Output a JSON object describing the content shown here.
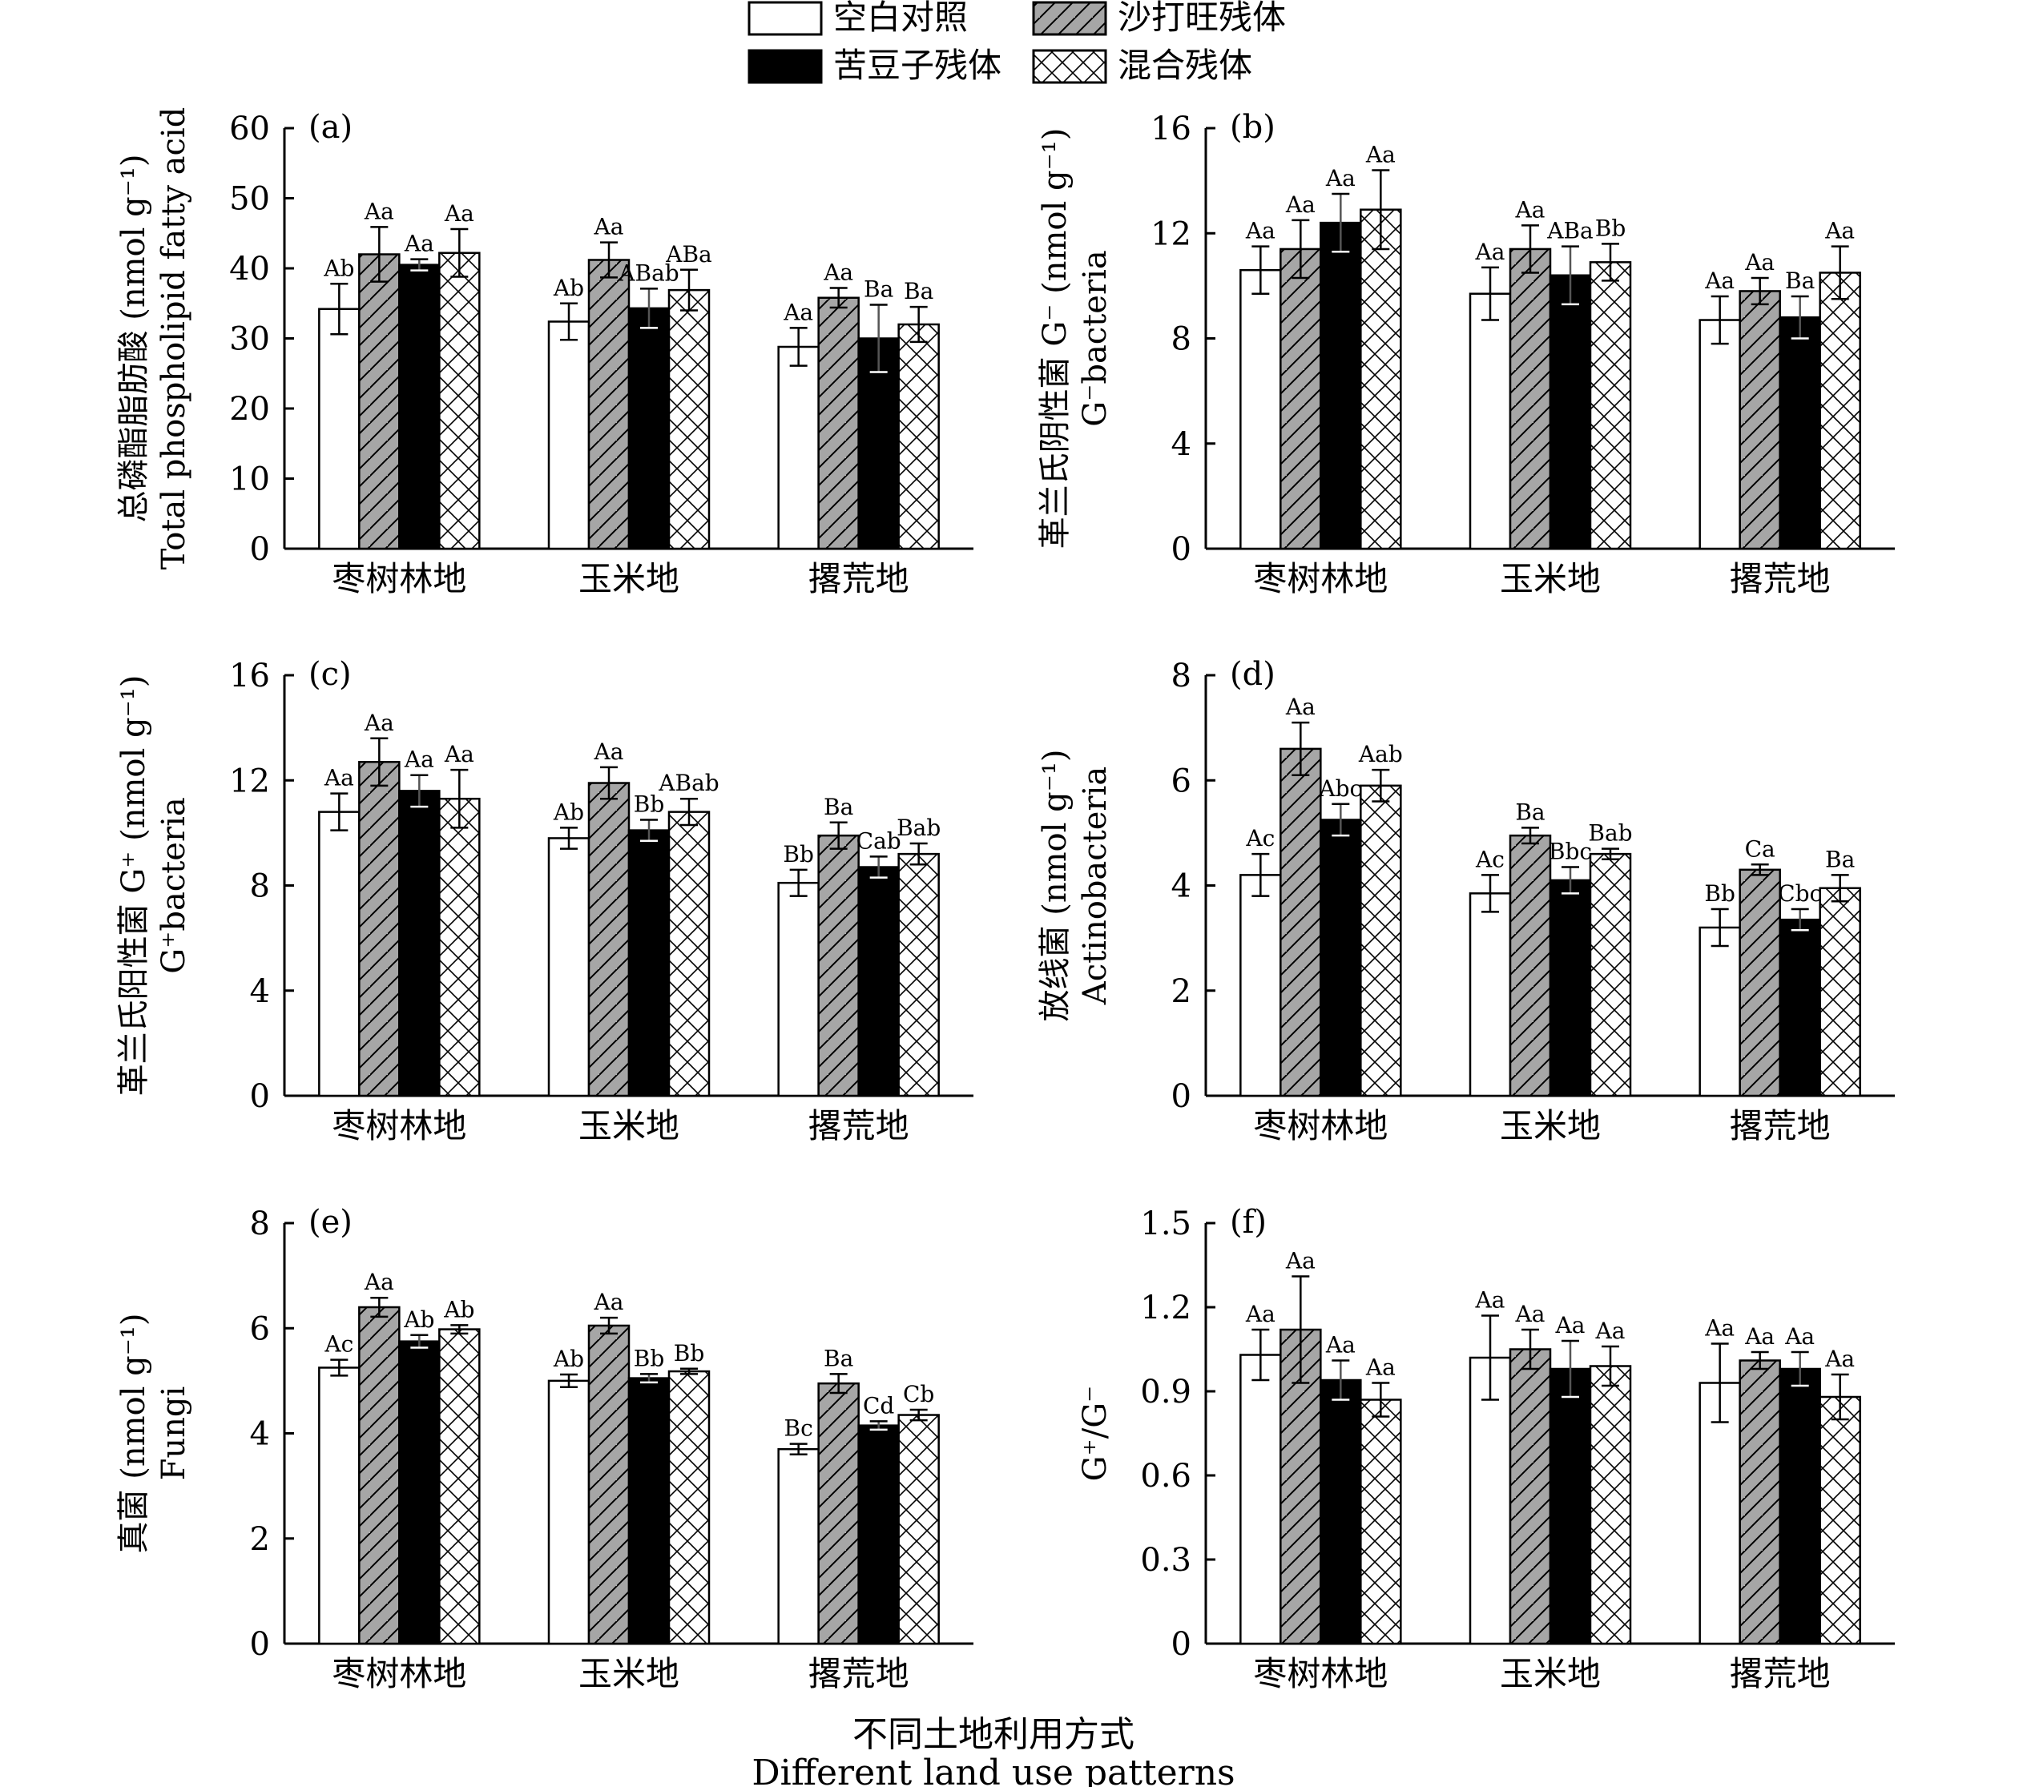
{
  "legend": [
    "空白对照",
    "沙打旺残体",
    "苦豆子残体",
    "混合残体"
  ],
  "fills": {
    "blank": "#ffffff",
    "shadawang": "#a6a6a6",
    "kudouzi": "#000000",
    "mixed": "#ffffff"
  },
  "x_title": {
    "zh": "不同土地利用方式",
    "en": "Different land use patterns"
  },
  "categories": [
    "枣树林地",
    "玉米地",
    "撂荒地"
  ],
  "chart_data": [
    {
      "type": "bar",
      "panel": "(a)",
      "ylabel_zh": "总磷酯脂肪酸 (nmol g⁻¹)",
      "ylabel_en": "Total phospholipid fatty acid",
      "ylim": [
        0,
        60
      ],
      "yticks": [
        "0",
        "10",
        "20",
        "30",
        "40",
        "50",
        "60"
      ],
      "categories": [
        "枣树林地",
        "玉米地",
        "撂荒地"
      ],
      "series": [
        {
          "name": "空白对照",
          "values": [
            34.2,
            32.4,
            28.8
          ],
          "err": [
            3.6,
            2.6,
            2.7
          ],
          "labels": [
            "Ab",
            "Ab",
            "Aa"
          ]
        },
        {
          "name": "沙打旺残体",
          "values": [
            42.0,
            41.2,
            35.8
          ],
          "err": [
            3.9,
            2.5,
            1.4
          ],
          "labels": [
            "Aa",
            "Aa",
            "Aa"
          ]
        },
        {
          "name": "苦豆子残体",
          "values": [
            40.5,
            34.3,
            30.0
          ],
          "err": [
            0.8,
            2.8,
            4.8
          ],
          "labels": [
            "Aa",
            "ABab",
            "Ba"
          ]
        },
        {
          "name": "混合残体",
          "values": [
            42.2,
            36.9,
            32.0
          ],
          "err": [
            3.4,
            2.9,
            2.5
          ],
          "labels": [
            "Aa",
            "ABa",
            "Ba"
          ]
        }
      ]
    },
    {
      "type": "bar",
      "panel": "(b)",
      "ylabel_zh": "革兰氏阴性菌 G⁻ (nmol g⁻¹)",
      "ylabel_en": "G⁻bacteria",
      "ylim": [
        0,
        16
      ],
      "yticks": [
        "0",
        "4",
        "8",
        "12",
        "16"
      ],
      "categories": [
        "枣树林地",
        "玉米地",
        "撂荒地"
      ],
      "series": [
        {
          "name": "空白对照",
          "values": [
            10.6,
            9.7,
            8.7
          ],
          "err": [
            0.9,
            1.0,
            0.9
          ],
          "labels": [
            "Aa",
            "Aa",
            "Aa"
          ]
        },
        {
          "name": "沙打旺残体",
          "values": [
            11.4,
            11.4,
            9.8
          ],
          "err": [
            1.1,
            0.9,
            0.5
          ],
          "labels": [
            "Aa",
            "Aa",
            "Aa"
          ]
        },
        {
          "name": "苦豆子残体",
          "values": [
            12.4,
            10.4,
            8.8
          ],
          "err": [
            1.1,
            1.1,
            0.8
          ],
          "labels": [
            "Aa",
            "ABa",
            "Ba"
          ]
        },
        {
          "name": "混合残体",
          "values": [
            12.9,
            10.9,
            10.5
          ],
          "err": [
            1.5,
            0.7,
            1.0
          ],
          "labels": [
            "Aa",
            "Bb",
            "Aa"
          ]
        }
      ]
    },
    {
      "type": "bar",
      "panel": "(c)",
      "ylabel_zh": "革兰氏阳性菌 G⁺ (nmol g⁻¹)",
      "ylabel_en": "G⁺bacteria",
      "ylim": [
        0,
        16
      ],
      "yticks": [
        "0",
        "4",
        "8",
        "12",
        "16"
      ],
      "categories": [
        "枣树林地",
        "玉米地",
        "撂荒地"
      ],
      "series": [
        {
          "name": "空白对照",
          "values": [
            10.8,
            9.8,
            8.1
          ],
          "err": [
            0.7,
            0.4,
            0.5
          ],
          "labels": [
            "Aa",
            "Ab",
            "Bb"
          ]
        },
        {
          "name": "沙打旺残体",
          "values": [
            12.7,
            11.9,
            9.9
          ],
          "err": [
            0.9,
            0.6,
            0.5
          ],
          "labels": [
            "Aa",
            "Aa",
            "Ba"
          ]
        },
        {
          "name": "苦豆子残体",
          "values": [
            11.6,
            10.1,
            8.7
          ],
          "err": [
            0.6,
            0.4,
            0.4
          ],
          "labels": [
            "Aa",
            "Bb",
            "Cab"
          ]
        },
        {
          "name": "混合残体",
          "values": [
            11.3,
            10.8,
            9.2
          ],
          "err": [
            1.1,
            0.5,
            0.4
          ],
          "labels": [
            "Aa",
            "ABab",
            "Bab"
          ]
        }
      ]
    },
    {
      "type": "bar",
      "panel": "(d)",
      "ylabel_zh": "放线菌 (nmol g⁻¹)",
      "ylabel_en": "Actinobacteria",
      "ylim": [
        0,
        8
      ],
      "yticks": [
        "0",
        "2",
        "4",
        "6",
        "8"
      ],
      "categories": [
        "枣树林地",
        "玉米地",
        "撂荒地"
      ],
      "series": [
        {
          "name": "空白对照",
          "values": [
            4.2,
            3.85,
            3.2
          ],
          "err": [
            0.4,
            0.35,
            0.35
          ],
          "labels": [
            "Ac",
            "Ac",
            "Bb"
          ]
        },
        {
          "name": "沙打旺残体",
          "values": [
            6.6,
            4.95,
            4.3
          ],
          "err": [
            0.5,
            0.15,
            0.1
          ],
          "labels": [
            "Aa",
            "Ba",
            "Ca"
          ]
        },
        {
          "name": "苦豆子残体",
          "values": [
            5.25,
            4.1,
            3.35
          ],
          "err": [
            0.3,
            0.25,
            0.2
          ],
          "labels": [
            "Abc",
            "Bbc",
            "Cbc"
          ]
        },
        {
          "name": "混合残体",
          "values": [
            5.9,
            4.6,
            3.95
          ],
          "err": [
            0.3,
            0.1,
            0.25
          ],
          "labels": [
            "Aab",
            "Bab",
            "Ba"
          ]
        }
      ]
    },
    {
      "type": "bar",
      "panel": "(e)",
      "ylabel_zh": "真菌 (nmol g⁻¹)",
      "ylabel_en": "Fungi",
      "ylim": [
        0,
        8
      ],
      "yticks": [
        "0",
        "2",
        "4",
        "6",
        "8"
      ],
      "categories": [
        "枣树林地",
        "玉米地",
        "撂荒地"
      ],
      "series": [
        {
          "name": "空白对照",
          "values": [
            5.25,
            5.0,
            3.7
          ],
          "err": [
            0.15,
            0.12,
            0.1
          ],
          "labels": [
            "Ac",
            "Ab",
            "Bc"
          ]
        },
        {
          "name": "沙打旺残体",
          "values": [
            6.4,
            6.05,
            4.95
          ],
          "err": [
            0.18,
            0.15,
            0.18
          ],
          "labels": [
            "Aa",
            "Aa",
            "Ba"
          ]
        },
        {
          "name": "苦豆子残体",
          "values": [
            5.75,
            5.05,
            4.15
          ],
          "err": [
            0.12,
            0.08,
            0.08
          ],
          "labels": [
            "Ab",
            "Bb",
            "Cd"
          ]
        },
        {
          "name": "混合残体",
          "values": [
            5.98,
            5.18,
            4.35
          ],
          "err": [
            0.08,
            0.05,
            0.1
          ],
          "labels": [
            "Ab",
            "Bb",
            "Cb"
          ]
        }
      ]
    },
    {
      "type": "bar",
      "panel": "(f)",
      "ylabel_zh": "G⁺/G⁻",
      "ylabel_en": "",
      "ylim": [
        0,
        1.5
      ],
      "yticks": [
        "0",
        "0.3",
        "0.6",
        "0.9",
        "1.2",
        "1.5"
      ],
      "categories": [
        "枣树林地",
        "玉米地",
        "撂荒地"
      ],
      "series": [
        {
          "name": "空白对照",
          "values": [
            1.03,
            1.02,
            0.93
          ],
          "err": [
            0.09,
            0.15,
            0.14
          ],
          "labels": [
            "Aa",
            "Aa",
            "Aa"
          ]
        },
        {
          "name": "沙打旺残体",
          "values": [
            1.12,
            1.05,
            1.01
          ],
          "err": [
            0.19,
            0.07,
            0.03
          ],
          "labels": [
            "Aa",
            "Aa",
            "Aa"
          ]
        },
        {
          "name": "苦豆子残体",
          "values": [
            0.94,
            0.98,
            0.98
          ],
          "err": [
            0.07,
            0.1,
            0.06
          ],
          "labels": [
            "Aa",
            "Aa",
            "Aa"
          ]
        },
        {
          "name": "混合残体",
          "values": [
            0.87,
            0.99,
            0.88
          ],
          "err": [
            0.06,
            0.07,
            0.08
          ],
          "labels": [
            "Aa",
            "Aa",
            "Aa"
          ]
        }
      ]
    }
  ]
}
